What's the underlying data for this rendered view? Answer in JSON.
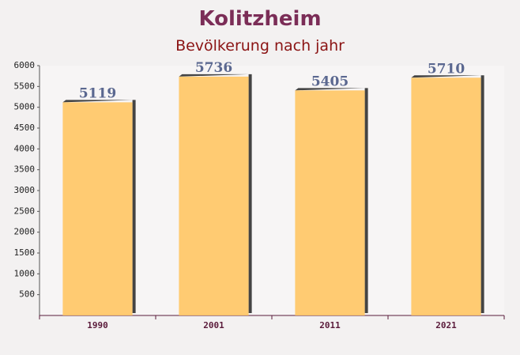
{
  "chart_data": {
    "type": "bar",
    "title": "Kolitzheim",
    "subtitle": "Bevölkerung nach jahr",
    "categories": [
      "1990",
      "2001",
      "2011",
      "2021"
    ],
    "values": [
      5119,
      5736,
      5405,
      5710
    ],
    "color": "#ffc664",
    "ylim": [
      0,
      6000
    ],
    "yticks": [
      500,
      1000,
      1500,
      2000,
      2500,
      3000,
      3500,
      4000,
      4500,
      5000,
      5500,
      6000
    ]
  }
}
